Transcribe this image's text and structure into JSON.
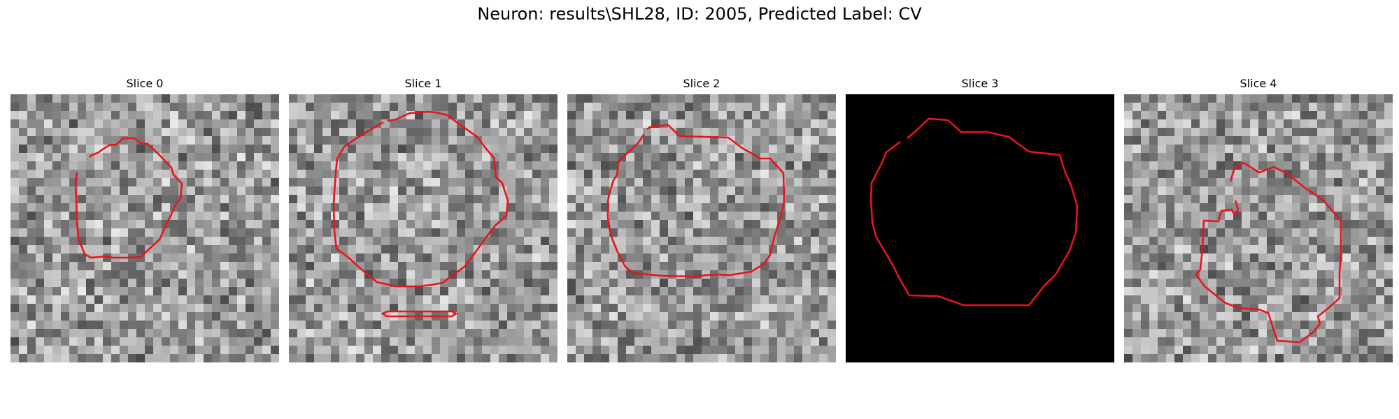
{
  "figure": {
    "title": "Neuron: results\\SHL28, ID: 2005, Predicted Label: CV"
  },
  "panels": [
    {
      "title": "Slice 0",
      "background": "noise",
      "seed": 11
    },
    {
      "title": "Slice 1",
      "background": "noise",
      "seed": 23
    },
    {
      "title": "Slice 2",
      "background": "noise",
      "seed": 37
    },
    {
      "title": "Slice 3",
      "background": "black",
      "seed": 0
    },
    {
      "title": "Slice 4",
      "background": "noise",
      "seed": 53
    }
  ],
  "colors": {
    "contour": "#e8141c",
    "black_slice": "#000000"
  }
}
